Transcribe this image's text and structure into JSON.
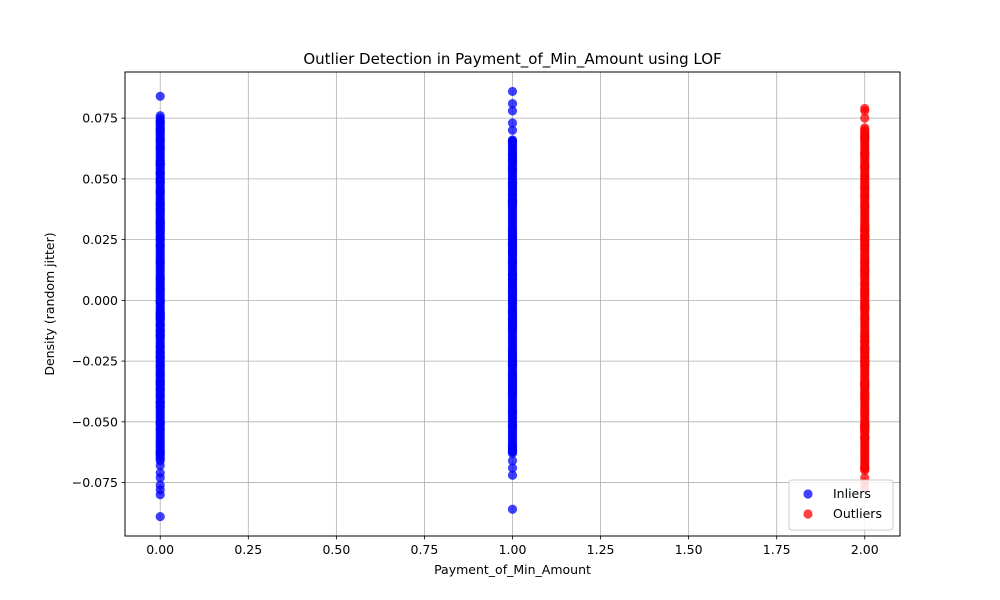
{
  "chart_data": {
    "type": "scatter",
    "title": "Outlier Detection in Payment_of_Min_Amount using LOF",
    "xlabel": "Payment_of_Min_Amount",
    "ylabel": "Density (random jitter)",
    "xlim": [
      -0.1,
      2.1
    ],
    "ylim": [
      -0.097,
      0.094
    ],
    "x_ticks": [
      0.0,
      0.25,
      0.5,
      0.75,
      1.0,
      1.25,
      1.5,
      1.75,
      2.0
    ],
    "x_tick_labels": [
      "0.00",
      "0.25",
      "0.50",
      "0.75",
      "1.00",
      "1.25",
      "1.50",
      "1.75",
      "2.00"
    ],
    "y_ticks": [
      -0.075,
      -0.05,
      -0.025,
      0.0,
      0.025,
      0.05,
      0.075
    ],
    "y_tick_labels": [
      "−0.075",
      "−0.050",
      "−0.025",
      "0.000",
      "0.025",
      "0.050",
      "0.075"
    ],
    "grid": true,
    "legend_position": "bottom-right",
    "series": [
      {
        "name": "Inliers",
        "color": "#0000ff",
        "alpha": 0.75,
        "groups": [
          {
            "x": 0.0,
            "dense_range": [
              -0.066,
              0.074
            ],
            "isolated_y": [
              0.084,
              0.076,
              0.075,
              -0.068,
              -0.071,
              -0.073,
              -0.076,
              -0.078,
              -0.08,
              -0.089
            ]
          },
          {
            "x": 1.0,
            "dense_range": [
              -0.063,
              0.066
            ],
            "isolated_y": [
              0.086,
              0.081,
              0.078,
              0.073,
              0.07,
              -0.066,
              -0.069,
              -0.072,
              -0.086
            ]
          }
        ]
      },
      {
        "name": "Outliers",
        "color": "#ff0000",
        "alpha": 0.75,
        "groups": [
          {
            "x": 2.0,
            "dense_range": [
              -0.07,
              0.071
            ],
            "isolated_y": [
              0.079,
              0.078,
              0.075,
              -0.073,
              -0.075,
              -0.077
            ]
          }
        ]
      }
    ]
  }
}
